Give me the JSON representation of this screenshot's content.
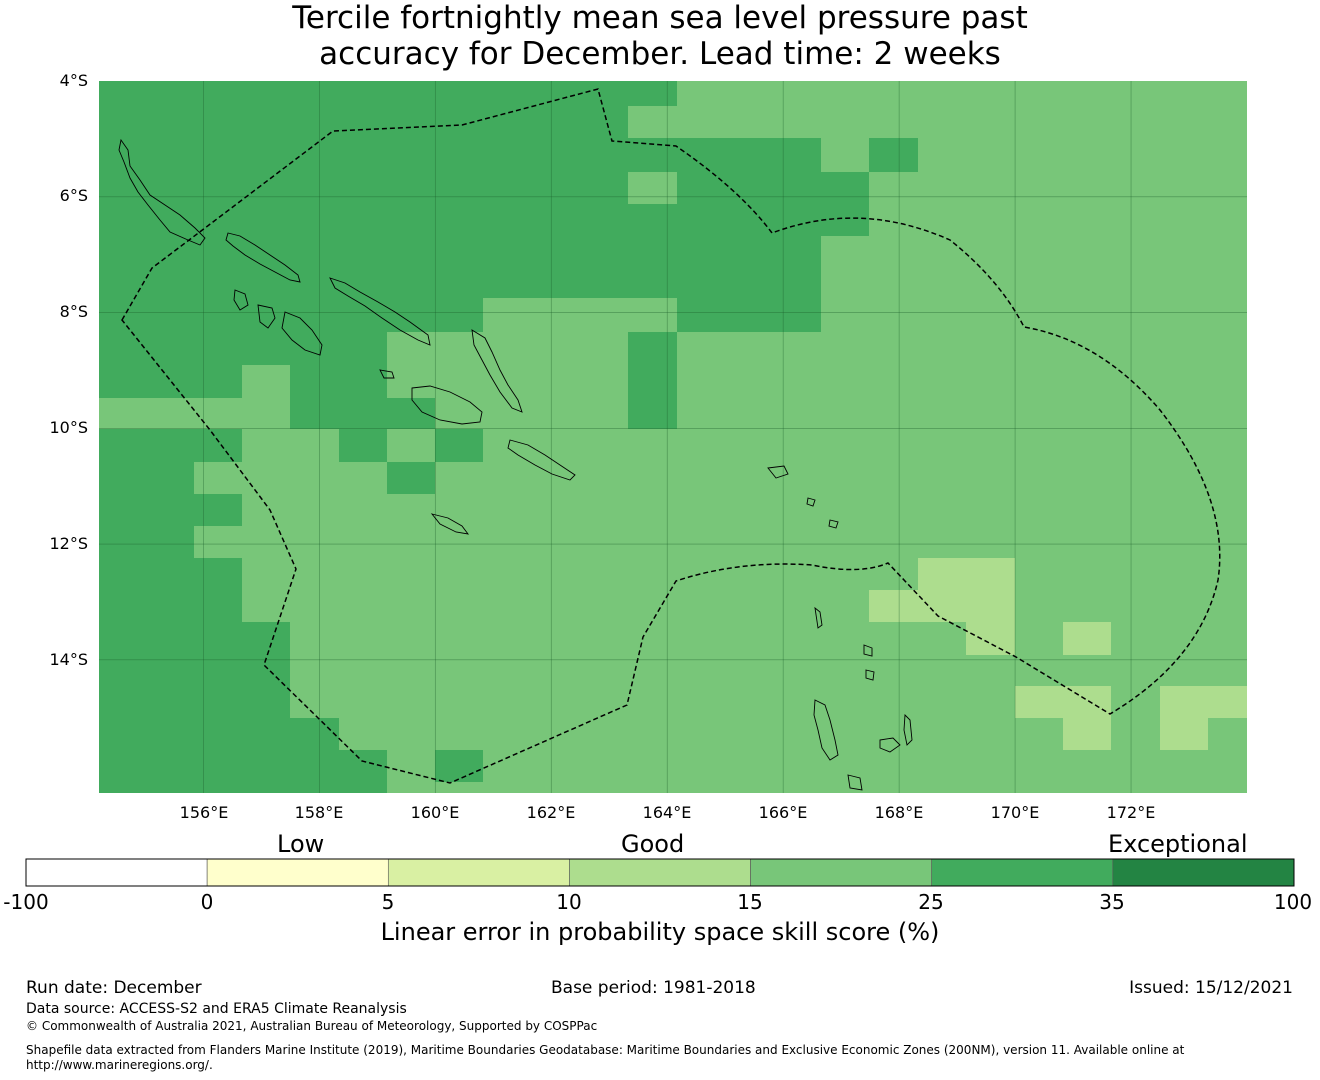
{
  "title": {
    "line1": "Tercile fortnightly mean sea level pressure past",
    "line2": "accuracy for December. Lead time: 2 weeks"
  },
  "map": {
    "lat_labels": [
      "4°S",
      "6°S",
      "8°S",
      "10°S",
      "12°S",
      "14°S"
    ],
    "lon_labels": [
      "156°E",
      "158°E",
      "160°E",
      "162°E",
      "164°E",
      "166°E",
      "168°E",
      "170°E",
      "172°E"
    ],
    "lon_range": [
      154.2,
      174.0
    ],
    "lat_range": [
      -16.3,
      -4.0
    ],
    "colors": {
      "c20": "#41ab5d",
      "c15": "#78c679",
      "c10": "#addd8e",
      "grid": "#1a5c2a",
      "boundary": "#000000",
      "coast": "#000000"
    }
  },
  "colorbar": {
    "category_labels": [
      "Low",
      "Good",
      "Exceptional"
    ],
    "ticks": [
      "-100",
      "0",
      "5",
      "10",
      "15",
      "25",
      "35",
      "100"
    ],
    "segment_colors": [
      "#ffffff",
      "#ffffcc",
      "#d9f0a3",
      "#addd8e",
      "#78c679",
      "#41ab5d",
      "#238443"
    ],
    "title": "Linear error in probability space skill score (%)"
  },
  "footer": {
    "run_date": "Run date: December",
    "base_period": "Base period: 1981-2018",
    "issued": "Issued: 15/12/2021",
    "data_source": "Data source: ACCESS-S2 and ERA5 Climate Reanalysis",
    "copyright": "© Commonwealth of Australia 2021, Australian Bureau of Meteorology, Supported by COSPPac",
    "shapefile_line1": "Shapefile data extracted from Flanders Marine Institute (2019), Maritime Boundaries Geodatabase: Maritime Boundaries and Exclusive Economic Zones (200NM), version 11. Available online at",
    "shapefile_line2": "http://www.marineregions.org/."
  }
}
